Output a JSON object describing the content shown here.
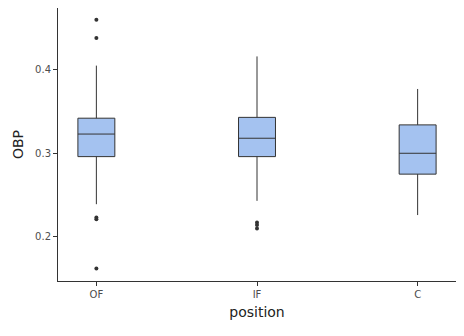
{
  "chart_data": {
    "type": "box",
    "xlabel": "position",
    "ylabel": "OBP",
    "categories": [
      "OF",
      "IF",
      "C"
    ],
    "q1": [
      0.296,
      0.296,
      0.275
    ],
    "median": [
      0.323,
      0.318,
      0.3
    ],
    "q3": [
      0.342,
      0.343,
      0.334
    ],
    "lower_whisker": [
      0.239,
      0.243,
      0.226
    ],
    "upper_whisker": [
      0.405,
      0.416,
      0.377
    ],
    "outliers": [
      [
        0.46,
        0.438,
        0.223,
        0.221,
        0.162
      ],
      [
        0.217,
        0.214,
        0.21
      ],
      []
    ],
    "color": "#a4c2f0",
    "ylim": [
      0.147,
      0.474
    ],
    "yticks": [
      0.2,
      0.3,
      0.4
    ],
    "grid": false
  }
}
